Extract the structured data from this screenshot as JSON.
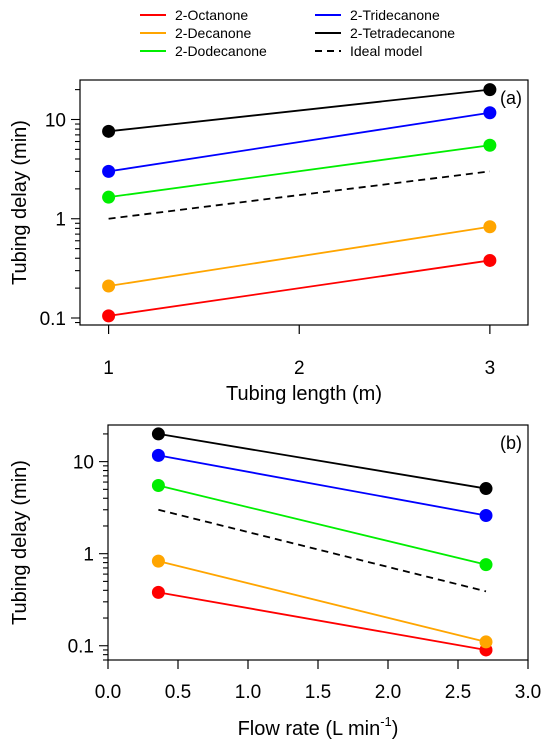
{
  "legend": [
    {
      "label": "2-Octanone",
      "color": "#ff0000",
      "style": "solid"
    },
    {
      "label": "2-Tridecanone",
      "color": "#0000ff",
      "style": "solid"
    },
    {
      "label": "2-Decanone",
      "color": "#ffa500",
      "style": "solid"
    },
    {
      "label": "2-Tetradecanone",
      "color": "#000000",
      "style": "solid"
    },
    {
      "label": "2-Dodecanone",
      "color": "#00ee00",
      "style": "solid"
    },
    {
      "label": "Ideal model",
      "color": "#000000",
      "style": "dashed"
    }
  ],
  "chart_data": [
    {
      "type": "line",
      "panel_label": "(a)",
      "xlabel": "Tubing length (m)",
      "ylabel": "Tubing delay (min)",
      "x_scale": "linear",
      "y_scale": "log",
      "xlim": [
        0.85,
        3.2
      ],
      "ylim": [
        0.085,
        25
      ],
      "xticks": [
        1,
        2,
        3
      ],
      "xtick_labels": [
        "1",
        "2",
        "3"
      ],
      "yticks": [
        0.1,
        1,
        10
      ],
      "ytick_labels": [
        "0.1",
        "1",
        "10"
      ],
      "grid": false,
      "series": [
        {
          "name": "2-Octanone",
          "color": "#ff0000",
          "markers": true,
          "x": [
            1,
            3
          ],
          "y": [
            0.105,
            0.38
          ]
        },
        {
          "name": "2-Decanone",
          "color": "#ffa500",
          "markers": true,
          "x": [
            1,
            3
          ],
          "y": [
            0.21,
            0.83
          ]
        },
        {
          "name": "2-Dodecanone",
          "color": "#00ee00",
          "markers": true,
          "x": [
            1,
            3
          ],
          "y": [
            1.65,
            5.5
          ]
        },
        {
          "name": "2-Tridecanone",
          "color": "#0000ff",
          "markers": true,
          "x": [
            1,
            3
          ],
          "y": [
            3.0,
            11.7
          ]
        },
        {
          "name": "2-Tetradecanone",
          "color": "#000000",
          "markers": true,
          "x": [
            1,
            3
          ],
          "y": [
            7.6,
            20
          ]
        },
        {
          "name": "Ideal model",
          "color": "#000000",
          "dashed": true,
          "markers": false,
          "x": [
            1,
            3
          ],
          "y": [
            1.0,
            3.0
          ]
        }
      ]
    },
    {
      "type": "line",
      "panel_label": "(b)",
      "xlabel": "Flow rate (L min",
      "xlabel_superscript": "-1",
      "xlabel_suffix": ")",
      "ylabel": "Tubing delay (min)",
      "x_scale": "linear",
      "y_scale": "log",
      "xlim": [
        0,
        3.0
      ],
      "ylim": [
        0.07,
        25
      ],
      "xticks": [
        0,
        0.5,
        1,
        1.5,
        2,
        2.5,
        3
      ],
      "xtick_labels": [
        "0.0",
        "0.5",
        "1.0",
        "1.5",
        "2.0",
        "2.5",
        "3.0"
      ],
      "yticks": [
        0.1,
        1,
        10
      ],
      "ytick_labels": [
        "0.1",
        "1",
        "10"
      ],
      "grid": false,
      "series": [
        {
          "name": "2-Octanone",
          "color": "#ff0000",
          "markers": true,
          "x": [
            0.36,
            2.7
          ],
          "y": [
            0.38,
            0.09
          ]
        },
        {
          "name": "2-Decanone",
          "color": "#ffa500",
          "markers": true,
          "x": [
            0.36,
            2.7
          ],
          "y": [
            0.83,
            0.11
          ]
        },
        {
          "name": "2-Dodecanone",
          "color": "#00ee00",
          "markers": true,
          "x": [
            0.36,
            2.7
          ],
          "y": [
            5.5,
            0.76
          ]
        },
        {
          "name": "2-Tridecanone",
          "color": "#0000ff",
          "markers": true,
          "x": [
            0.36,
            2.7
          ],
          "y": [
            11.7,
            2.6
          ]
        },
        {
          "name": "2-Tetradecanone",
          "color": "#000000",
          "markers": true,
          "x": [
            0.36,
            2.7
          ],
          "y": [
            20,
            5.1
          ]
        },
        {
          "name": "Ideal model",
          "color": "#000000",
          "dashed": true,
          "markers": false,
          "x": [
            0.36,
            2.7
          ],
          "y": [
            3.0,
            0.39
          ]
        }
      ]
    }
  ]
}
